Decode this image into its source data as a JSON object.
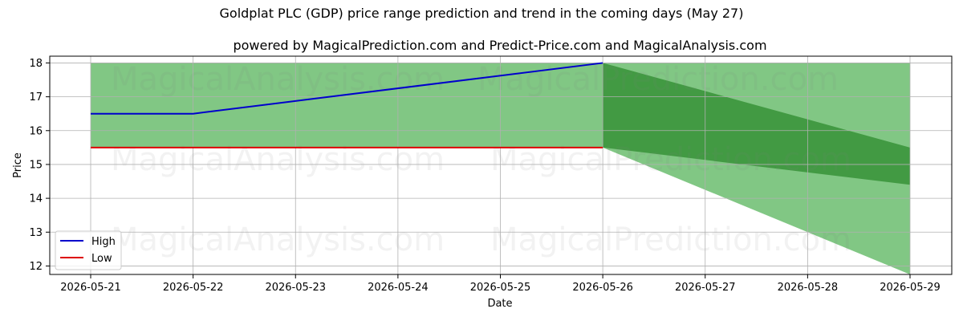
{
  "chart_data": {
    "type": "line",
    "title": "Goldplat PLC (GDP) price range prediction and trend in the coming days (May 27)",
    "subtitle": "powered by MagicalPrediction.com and Predict-Price.com and MagicalAnalysis.com",
    "xlabel": "Date",
    "ylabel": "Price",
    "x": [
      "2026-05-21",
      "2026-05-22",
      "2026-05-23",
      "2026-05-24",
      "2026-05-25",
      "2026-05-26",
      "2026-05-27",
      "2026-05-28",
      "2026-05-29"
    ],
    "ylim": [
      11.75,
      18.2
    ],
    "yticks": [
      12,
      13,
      14,
      15,
      16,
      17,
      18
    ],
    "grid": true,
    "legend_position": "bottom-left",
    "series": [
      {
        "name": "High",
        "color": "#0000cc",
        "points": [
          [
            "2026-05-21",
            16.5
          ],
          [
            "2026-05-22",
            16.5
          ],
          [
            "2026-05-26",
            18.0
          ]
        ]
      },
      {
        "name": "Low",
        "color": "#dd0000",
        "points": [
          [
            "2026-05-21",
            15.5
          ],
          [
            "2026-05-26",
            15.5
          ]
        ]
      }
    ],
    "bands": [
      {
        "color": "#4caf50",
        "opacity": 0.7,
        "points": [
          [
            "2026-05-21",
            15.5,
            18.0
          ],
          [
            "2026-05-26",
            15.5,
            18.0
          ]
        ]
      },
      {
        "color": "#4caf50",
        "opacity": 0.7,
        "points": [
          [
            "2026-05-26",
            15.5,
            18.0
          ],
          [
            "2026-05-29",
            11.75,
            18.0
          ]
        ]
      },
      {
        "color": "#2e8b2e",
        "opacity": 0.75,
        "points": [
          [
            "2026-05-26",
            15.5,
            18.0
          ],
          [
            "2026-05-29",
            14.4,
            15.5
          ]
        ]
      }
    ],
    "watermarks": [
      "MagicalAnalysis.com",
      "MagicalPrediction.com"
    ]
  }
}
